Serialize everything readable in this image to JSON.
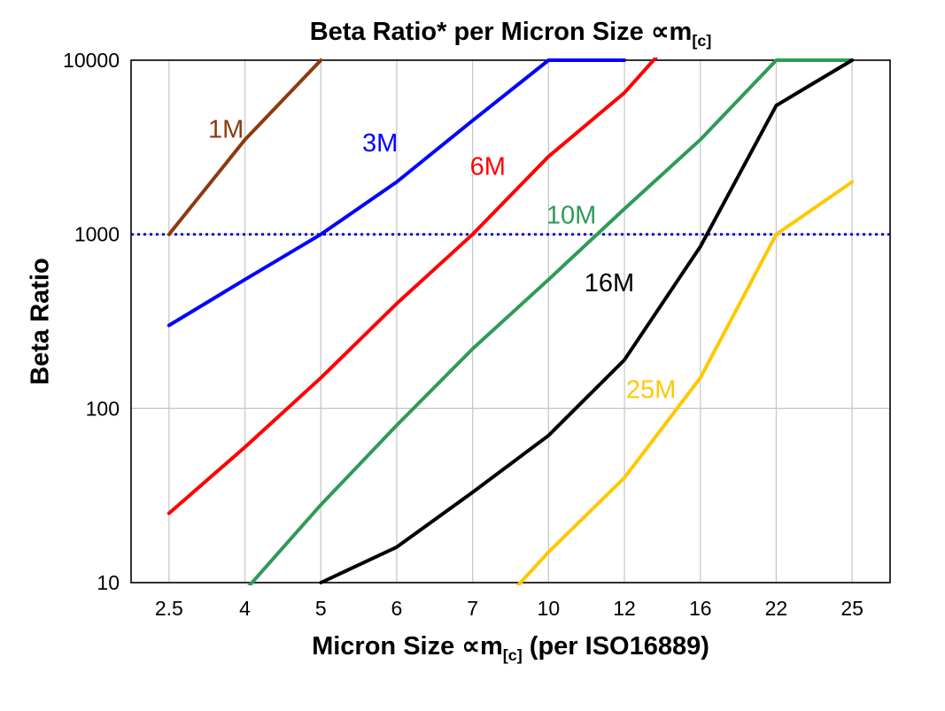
{
  "chart_data": {
    "type": "line",
    "title_main": "Beta Ratio* per Micron Size ∝m",
    "title_sub": "[c]",
    "title": "Beta Ratio* per Micron Size ∝m[c]",
    "ylabel": "Beta Ratio",
    "xlabel_pre": "Micron Size ∝m",
    "xlabel_sub": "[c]",
    "xlabel_post": " (per ISO16889)",
    "xlabel": "Micron Size ∝m[c] (per ISO16889)",
    "x_categories": [
      "2.5",
      "4",
      "5",
      "6",
      "7",
      "10",
      "12",
      "16",
      "22",
      "25"
    ],
    "y_ticks": [
      "10",
      "100",
      "1000",
      "10000"
    ],
    "y_scale": "log",
    "ylim": [
      10,
      10000
    ],
    "grid": true,
    "grid_color": "#c9c9c9",
    "frame_color": "#000000",
    "reference_line": {
      "y": 1000,
      "color": "#0000dd",
      "style": "dotted"
    },
    "series": [
      {
        "name": "1M",
        "color": "#8c3a0e",
        "values": [
          1000,
          3500,
          10000,
          null,
          null,
          null,
          null,
          null,
          null,
          null
        ],
        "label": "1M",
        "label_pos": {
          "xi": 0.75,
          "y": 3600
        }
      },
      {
        "name": "3M",
        "color": "#0000ff",
        "values": [
          300,
          550,
          1000,
          2000,
          4500,
          10000,
          10000,
          null,
          null,
          null
        ],
        "label": "3M",
        "label_pos": {
          "xi": 2.78,
          "y": 3000
        }
      },
      {
        "name": "6M",
        "color": "#ff0000",
        "values": [
          25,
          60,
          150,
          400,
          1000,
          2800,
          6500,
          20000,
          null,
          null
        ],
        "label": "6M",
        "label_pos": {
          "xi": 4.2,
          "y": 2200
        }
      },
      {
        "name": "10M",
        "color": "#2e9b57",
        "values": [
          null,
          9,
          28,
          80,
          220,
          550,
          1400,
          3500,
          10000,
          10000
        ],
        "label": "10M",
        "label_pos": {
          "xi": 5.3,
          "y": 1150
        }
      },
      {
        "name": "16M",
        "color": "#000000",
        "values": [
          null,
          null,
          10,
          16,
          33,
          70,
          190,
          850,
          5500,
          10000
        ],
        "label": "16M",
        "label_pos": {
          "xi": 5.8,
          "y": 470
        }
      },
      {
        "name": "25M",
        "color": "#ffc800",
        "values": [
          null,
          null,
          null,
          null,
          5,
          15,
          40,
          150,
          1000,
          2000
        ],
        "label": "25M",
        "label_pos": {
          "xi": 6.35,
          "y": 115
        }
      }
    ],
    "legend_position": "inline-labels"
  }
}
